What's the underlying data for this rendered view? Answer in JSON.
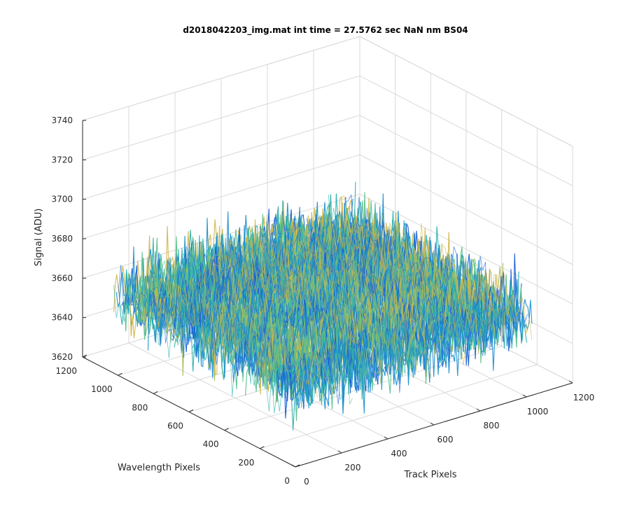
{
  "chart_data": {
    "type": "surface",
    "title": "d2018042203_img.mat int time = 27.5762 sec  NaN nm BS04",
    "xlabel": "Track Pixels",
    "ylabel": "Wavelength Pixels",
    "zlabel": "Signal (ADU)",
    "xlim": [
      0,
      1200
    ],
    "ylim": [
      0,
      1200
    ],
    "zlim": [
      3620,
      3740
    ],
    "x_ticks": [
      0,
      200,
      400,
      600,
      800,
      1000,
      1200
    ],
    "y_ticks": [
      0,
      200,
      400,
      600,
      800,
      1000,
      1200
    ],
    "z_ticks": [
      3620,
      3640,
      3660,
      3680,
      3700,
      3720,
      3740
    ],
    "x_tick_labels": [
      "0",
      "200",
      "400",
      "600",
      "800",
      "1000",
      "1200"
    ],
    "y_tick_labels": [
      "0",
      "200",
      "400",
      "600",
      "800",
      "1000",
      "1200"
    ],
    "z_tick_labels": [
      "3620",
      "3640",
      "3660",
      "3680",
      "3700",
      "3720",
      "3740"
    ],
    "data_extent": {
      "x": [
        0,
        1024
      ],
      "y": [
        0,
        1024
      ]
    },
    "signal_mean": 3660,
    "signal_range": [
      3635,
      3715
    ],
    "grid": true,
    "colormap": [
      "#1a5fd6",
      "#1f8fd1",
      "#2bb0b0",
      "#5cc08a",
      "#a8bd5a",
      "#d2b64a"
    ],
    "axes_color": "#262626",
    "grid_color": "#d9d9d9"
  }
}
